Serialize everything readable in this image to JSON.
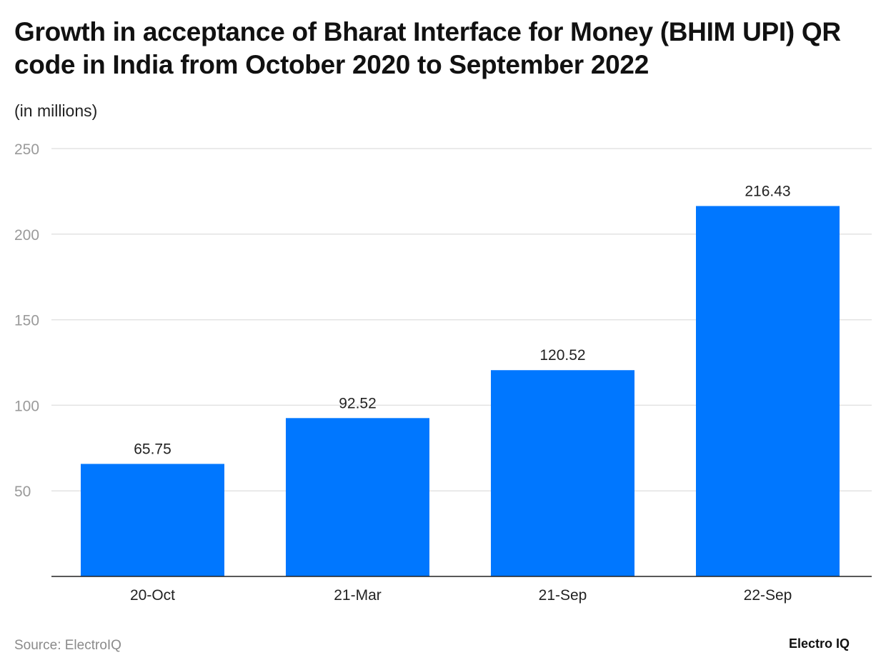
{
  "chart_data": {
    "type": "bar",
    "title": "Growth in acceptance of Bharat Interface for Money (BHIM UPI) QR code in India from October 2020 to September 2022",
    "subtitle": "(in millions)",
    "categories": [
      "20-Oct",
      "21-Mar",
      "21-Sep",
      "22-Sep"
    ],
    "values": [
      65.75,
      92.52,
      120.52,
      216.43
    ],
    "data_labels": [
      "65.75",
      "92.52",
      "120.52",
      "216.43"
    ],
    "xlabel": "",
    "ylabel": "",
    "ylim": [
      0,
      250
    ],
    "yticks": [
      50,
      100,
      150,
      200,
      250
    ],
    "grid": true,
    "legend": "none",
    "bar_color": "#0077ff",
    "source": "Source: ElectroIQ",
    "logo": "Electro IQ"
  }
}
